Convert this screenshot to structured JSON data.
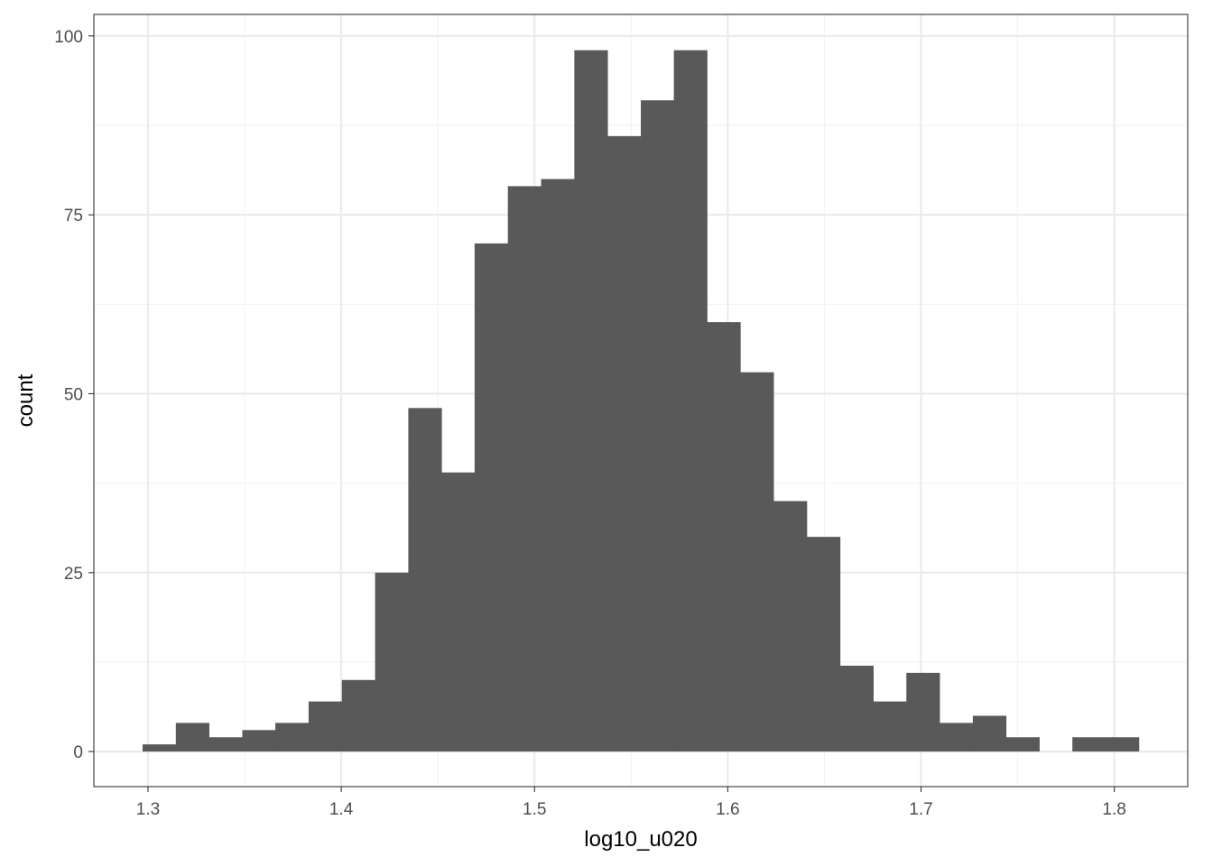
{
  "chart_data": {
    "type": "bar",
    "subtype": "histogram",
    "xlabel": "log10_u020",
    "ylabel": "count",
    "xlim": [
      1.272,
      1.838
    ],
    "ylim": [
      -4.9,
      103
    ],
    "x_ticks": [
      1.3,
      1.4,
      1.5,
      1.6,
      1.7,
      1.8
    ],
    "x_tick_labels": [
      "1.3",
      "1.4",
      "1.5",
      "1.6",
      "1.7",
      "1.8"
    ],
    "y_ticks": [
      0,
      25,
      50,
      75,
      100
    ],
    "y_tick_labels": [
      "0",
      "25",
      "50",
      "75",
      "100"
    ],
    "bin_width": 0.01718,
    "bin_centers": [
      1.3058,
      1.323,
      1.3402,
      1.3574,
      1.3745,
      1.3917,
      1.4089,
      1.4261,
      1.4433,
      1.4605,
      1.4776,
      1.4948,
      1.512,
      1.5292,
      1.5464,
      1.5636,
      1.5807,
      1.5979,
      1.6151,
      1.6323,
      1.6495,
      1.6667,
      1.6838,
      1.701,
      1.7182,
      1.7354,
      1.7526,
      1.7698,
      1.7869,
      1.8041
    ],
    "values": [
      1,
      4,
      2,
      3,
      4,
      7,
      10,
      25,
      48,
      39,
      71,
      79,
      80,
      98,
      86,
      91,
      98,
      60,
      53,
      35,
      30,
      12,
      7,
      11,
      4,
      5,
      2,
      0,
      2,
      2
    ],
    "bar_color": "#595959",
    "grid": true,
    "theme": "bw",
    "legend": "none"
  }
}
